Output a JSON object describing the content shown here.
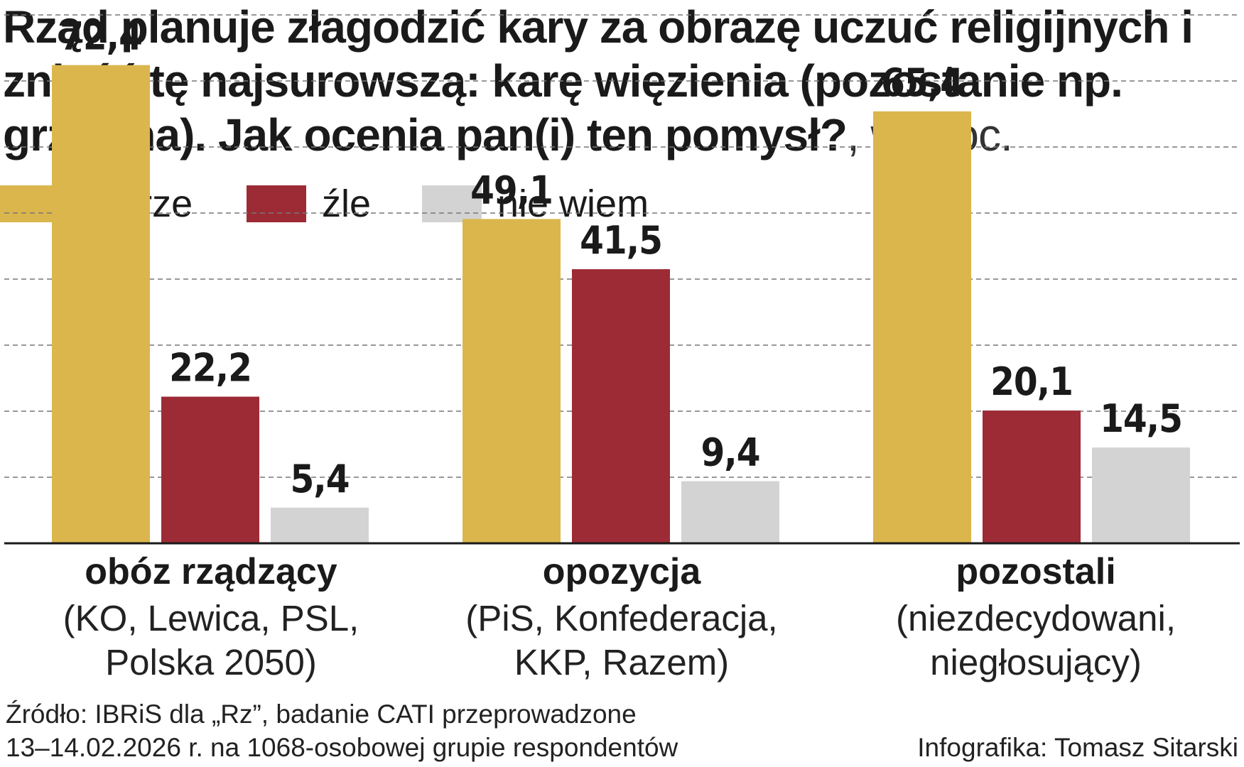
{
  "title": {
    "main": "Rząd planuje złagodzić kary za obrazę uczuć religijnych i znieść tę najsurowszą: karę więzienia (pozostanie np. grzywna). Jak ocenia pan(i) ten pomysł?",
    "unit": ", w proc."
  },
  "colors": {
    "dobrze": "#dbb64d",
    "zle": "#9c2b35",
    "nie_wiem": "#d3d3d3",
    "grid": "#777777",
    "axis": "#1a1a1a"
  },
  "chart_data": {
    "type": "bar",
    "title": "Rząd planuje złagodzić kary za obrazę uczuć religijnych i znieść tę najsurowszą: karę więzienia (pozostanie np. grzywna). Jak ocenia pan(i) ten pomysł?, w proc.",
    "xlabel": "",
    "ylabel": "",
    "ylim": [
      0,
      80
    ],
    "grid": true,
    "legend_position": "top-left",
    "categories": [
      {
        "name": "obóz rządzący",
        "sub": [
          "(KO, Lewica, PSL,",
          "Polska 2050)"
        ]
      },
      {
        "name": "opozycja",
        "sub": [
          "(PiS, Konfederacja,",
          "KKP, Razem)"
        ]
      },
      {
        "name": "pozostali",
        "sub": [
          "(niezdecydowani,",
          "niegłosujący)"
        ]
      }
    ],
    "series": [
      {
        "key": "dobrze",
        "name": "dobrze",
        "color": "#dbb64d",
        "values": [
          72.4,
          49.1,
          65.4
        ],
        "labels": [
          "72,4",
          "49,1",
          "65,4"
        ]
      },
      {
        "key": "zle",
        "name": "źle",
        "color": "#9c2b35",
        "values": [
          22.2,
          41.5,
          20.1
        ],
        "labels": [
          "22,2",
          "41,5",
          "20,1"
        ]
      },
      {
        "key": "nie_wiem",
        "name": "nie wiem",
        "color": "#d3d3d3",
        "values": [
          5.4,
          9.4,
          14.5
        ],
        "labels": [
          "5,4",
          "9,4",
          "14,5"
        ]
      }
    ]
  },
  "footer": {
    "source_line1": "Źródło: IBRiS dla „Rz”, badanie CATI przeprowadzone",
    "source_line2": "13–14.02.2026 r. na 1068-osobowej grupie respondentów",
    "credit": "Infografika: Tomasz Sitarski"
  }
}
